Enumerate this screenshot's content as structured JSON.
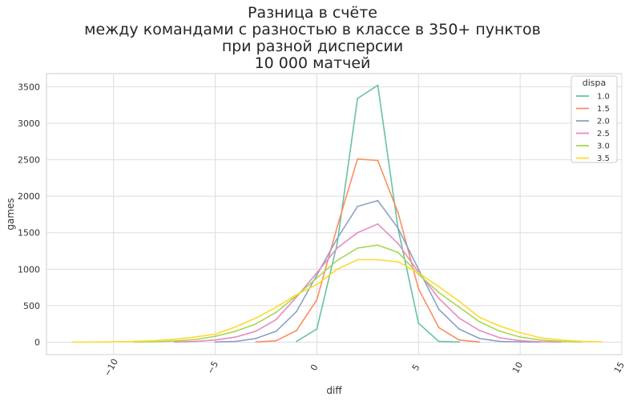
{
  "chart_data": {
    "type": "line",
    "title": [
      "Разница в счёте",
      "между командами с разностью в классе в 350+ пунктов",
      "при разной дисперсии",
      "10 000 матчей"
    ],
    "xlabel": "diff",
    "ylabel": "games",
    "xlim": [
      -13.3,
      15.0
    ],
    "ylim": [
      -170,
      3680
    ],
    "x_ticks": [
      -10,
      -5,
      0,
      5,
      10,
      15
    ],
    "x_tick_labels": [
      "−10",
      "−5",
      "0",
      "5",
      "10",
      "15"
    ],
    "y_ticks": [
      0,
      500,
      1000,
      1500,
      2000,
      2500,
      3000,
      3500
    ],
    "y_tick_labels": [
      "0",
      "500",
      "1000",
      "1500",
      "2000",
      "2500",
      "3000",
      "3500"
    ],
    "grid": true,
    "legend_title": "dispa",
    "legend_position": "top-right",
    "series": [
      {
        "name": "1.0",
        "color": "#66c2a5",
        "x": [
          -1,
          0,
          1,
          2,
          3,
          4,
          5,
          6,
          7
        ],
        "y": [
          10,
          180,
          1350,
          3340,
          3520,
          1550,
          260,
          10,
          2
        ]
      },
      {
        "name": "1.5",
        "color": "#fc8d62",
        "x": [
          -3,
          -2,
          -1,
          0,
          1,
          2,
          3,
          4,
          5,
          6,
          7,
          8
        ],
        "y": [
          2,
          20,
          160,
          580,
          1580,
          2510,
          2490,
          1770,
          730,
          200,
          30,
          2
        ]
      },
      {
        "name": "2.0",
        "color": "#8da0cb",
        "x": [
          -5,
          -4,
          -3,
          -2,
          -1,
          0,
          1,
          2,
          3,
          4,
          5,
          6,
          7,
          8,
          9,
          10,
          11
        ],
        "y": [
          2,
          10,
          50,
          150,
          420,
          920,
          1420,
          1860,
          1940,
          1560,
          1000,
          450,
          180,
          50,
          10,
          3,
          1
        ]
      },
      {
        "name": "2.5",
        "color": "#e78ac3",
        "x": [
          -7,
          -6,
          -5,
          -4,
          -3,
          -2,
          -1,
          0,
          1,
          2,
          3,
          4,
          5,
          6,
          7,
          8,
          9,
          10,
          11,
          12
        ],
        "y": [
          2,
          10,
          30,
          70,
          150,
          310,
          620,
          950,
          1290,
          1500,
          1620,
          1350,
          960,
          600,
          330,
          160,
          60,
          20,
          5,
          1
        ]
      },
      {
        "name": "3.0",
        "color": "#a6d854",
        "x": [
          -9,
          -8,
          -7,
          -6,
          -5,
          -4,
          -3,
          -2,
          -1,
          0,
          1,
          2,
          3,
          4,
          5,
          6,
          7,
          8,
          9,
          10,
          11,
          12,
          13
        ],
        "y": [
          2,
          5,
          15,
          35,
          80,
          150,
          250,
          410,
          640,
          880,
          1120,
          1290,
          1330,
          1230,
          930,
          680,
          480,
          280,
          150,
          70,
          30,
          10,
          2
        ]
      },
      {
        "name": "3.5",
        "color": "#ffd92f",
        "x": [
          -12,
          -11,
          -10,
          -9,
          -8,
          -7,
          -6,
          -5,
          -4,
          -3,
          -2,
          -1,
          0,
          1,
          2,
          3,
          4,
          5,
          6,
          7,
          8,
          9,
          10,
          11,
          12,
          13,
          14
        ],
        "y": [
          1,
          2,
          5,
          10,
          20,
          40,
          70,
          110,
          210,
          330,
          480,
          650,
          790,
          1000,
          1130,
          1130,
          1100,
          950,
          760,
          560,
          340,
          220,
          130,
          60,
          30,
          10,
          5
        ]
      }
    ]
  }
}
